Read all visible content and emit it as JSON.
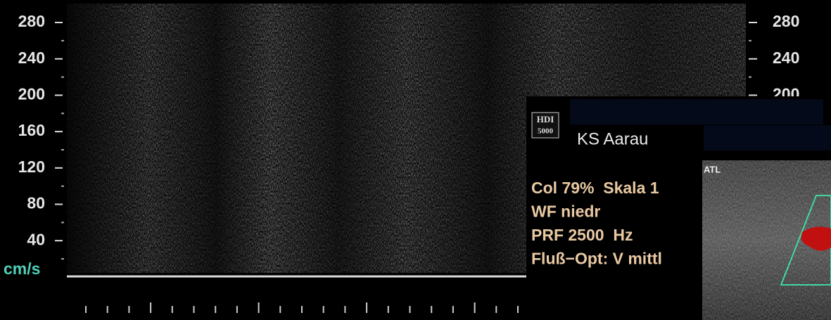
{
  "left_axis": {
    "ticks": [
      "280",
      "240",
      "200",
      "160",
      "120",
      "80",
      "40"
    ],
    "unit": "cm/s"
  },
  "right_axis": {
    "ticks": [
      "280",
      "240",
      "200"
    ]
  },
  "panel": {
    "logo": [
      "HDI",
      "5000"
    ],
    "site": "KS Aarau",
    "probe": "ATL",
    "settings": [
      "Col 79%  Skala 1",
      "WF niedr",
      "PRF 2500  Hz",
      "Fluß−Opt: V mittl"
    ]
  }
}
